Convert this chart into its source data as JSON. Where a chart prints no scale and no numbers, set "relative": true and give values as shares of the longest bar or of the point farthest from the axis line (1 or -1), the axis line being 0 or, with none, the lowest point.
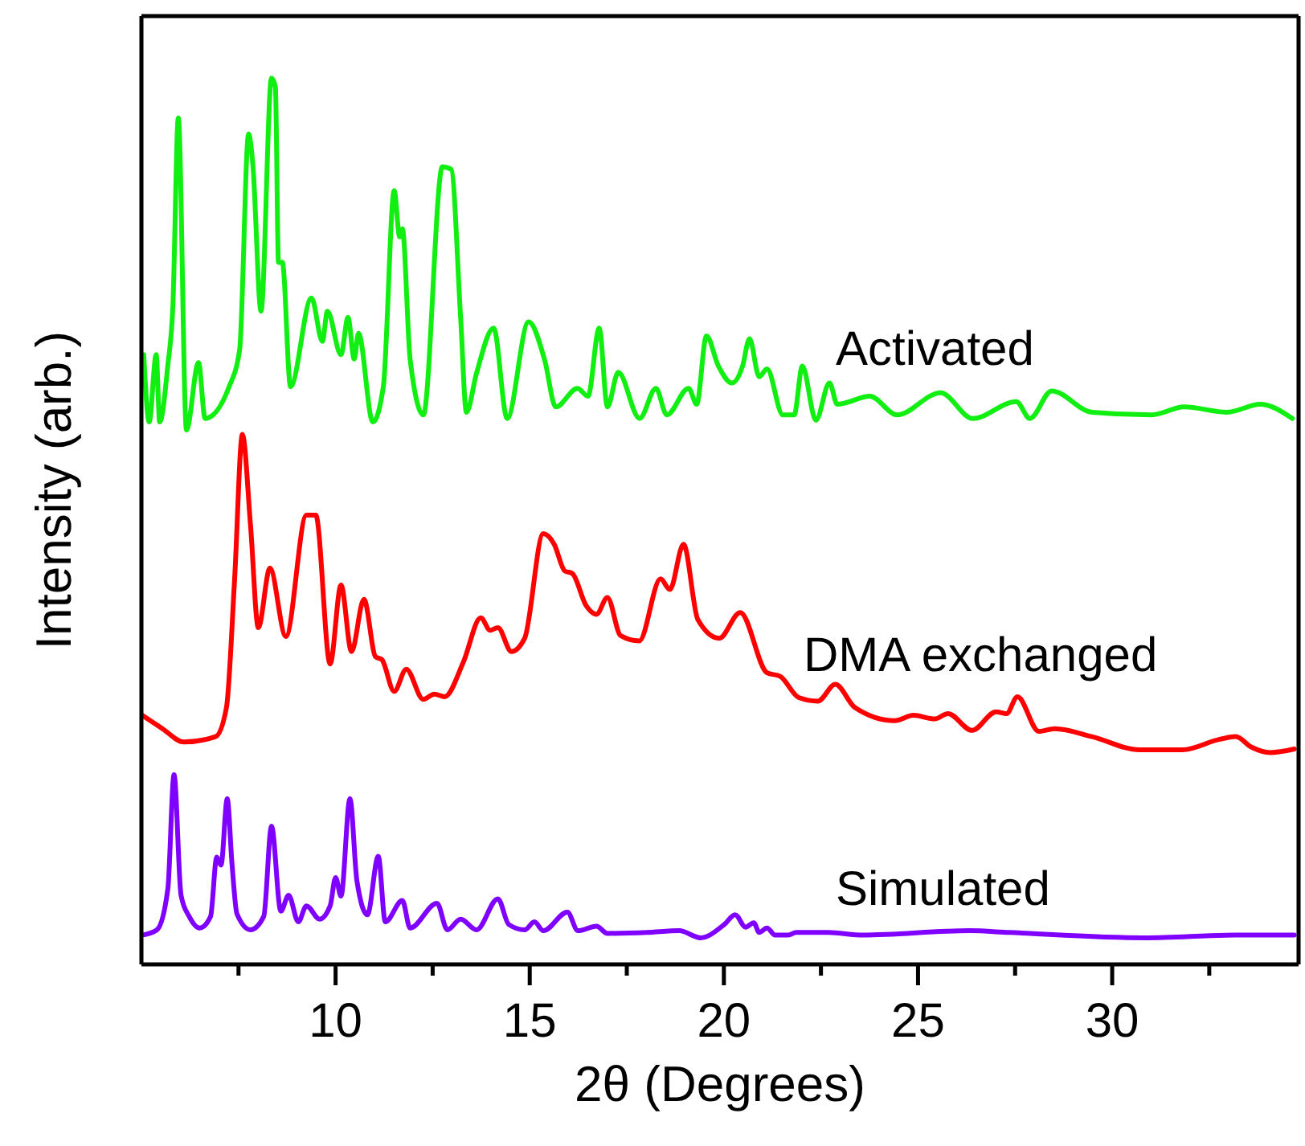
{
  "chart_data": {
    "type": "line",
    "relative": true,
    "xlabel": "2θ (Degrees)",
    "ylabel": "Intensity (arb.)",
    "xlim": [
      5,
      34.8
    ],
    "xticks": [
      {
        "value": 7.5,
        "label": null
      },
      10,
      {
        "value": 12.5,
        "label": null
      },
      15,
      {
        "value": 17.5,
        "label": null
      },
      20,
      {
        "value": 22.5,
        "label": null
      },
      25,
      {
        "value": 27.5,
        "label": null
      },
      30,
      {
        "value": 32.5,
        "label": null
      }
    ],
    "tick_labels": "x",
    "line_style": "solid",
    "series": [
      {
        "name": "Activated",
        "color": "#11ee11",
        "x": [
          5.06,
          5.2,
          5.38,
          5.47,
          5.68,
          5.81,
          5.95,
          6.16,
          6.47,
          6.64,
          7.26,
          7.53,
          7.76,
          7.87,
          8.08,
          8.35,
          8.45,
          8.53,
          8.63,
          8.84,
          9.38,
          9.66,
          9.79,
          10.14,
          10.32,
          10.48,
          10.59,
          10.96,
          11.23,
          11.51,
          11.65,
          11.72,
          11.92,
          12.26,
          12.75,
          12.98,
          13.22,
          13.37,
          13.63,
          14.07,
          14.42,
          14.97,
          15.39,
          15.67,
          16.23,
          16.5,
          16.79,
          17.0,
          17.28,
          17.83,
          18.25,
          18.53,
          19.09,
          19.3,
          19.55,
          19.86,
          20.21,
          20.48,
          20.66,
          20.91,
          21.11,
          21.52,
          21.81,
          22.02,
          22.37,
          22.72,
          22.92,
          23.76,
          24.46,
          25.58,
          26.41,
          27.53,
          27.88,
          28.44,
          29.48,
          31.02,
          31.85,
          32.96,
          33.81,
          34.64
        ],
        "values": [
          0.688,
          0.612,
          0.688,
          0.612,
          0.676,
          0.743,
          0.955,
          0.603,
          0.679,
          0.616,
          0.652,
          0.694,
          0.937,
          0.902,
          0.737,
          1.0,
          0.99,
          0.792,
          0.792,
          0.652,
          0.752,
          0.703,
          0.737,
          0.688,
          0.73,
          0.683,
          0.712,
          0.612,
          0.652,
          0.873,
          0.821,
          0.83,
          0.683,
          0.62,
          0.9,
          0.897,
          0.73,
          0.623,
          0.667,
          0.718,
          0.616,
          0.725,
          0.681,
          0.629,
          0.65,
          0.641,
          0.718,
          0.629,
          0.668,
          0.616,
          0.65,
          0.62,
          0.65,
          0.632,
          0.709,
          0.675,
          0.656,
          0.675,
          0.706,
          0.663,
          0.672,
          0.62,
          0.62,
          0.675,
          0.614,
          0.656,
          0.632,
          0.641,
          0.62,
          0.645,
          0.616,
          0.635,
          0.616,
          0.647,
          0.623,
          0.62,
          0.629,
          0.623,
          0.632,
          0.616
        ]
      },
      {
        "name": "DMA exchanged",
        "color": "#ff0000",
        "x": [
          5.02,
          5.54,
          6.09,
          6.91,
          7.19,
          7.4,
          7.6,
          7.81,
          8.01,
          8.31,
          8.72,
          9.25,
          9.49,
          9.86,
          10.14,
          10.41,
          10.73,
          11.03,
          11.19,
          11.51,
          11.82,
          12.26,
          12.54,
          12.81,
          13.29,
          13.74,
          13.98,
          14.18,
          14.53,
          14.87,
          15.35,
          15.63,
          15.9,
          16.1,
          16.45,
          16.72,
          17.0,
          17.34,
          17.82,
          18.37,
          18.61,
          18.96,
          19.33,
          19.88,
          20.42,
          21.11,
          21.45,
          21.93,
          22.42,
          22.87,
          23.37,
          24.4,
          24.88,
          25.43,
          25.77,
          26.39,
          27.01,
          27.28,
          27.56,
          28.11,
          28.52,
          29.48,
          30.71,
          31.81,
          32.77,
          33.18,
          33.59,
          34.07,
          34.69
        ],
        "values": [
          0.281,
          0.266,
          0.251,
          0.257,
          0.29,
          0.435,
          0.598,
          0.495,
          0.38,
          0.447,
          0.37,
          0.507,
          0.507,
          0.339,
          0.428,
          0.353,
          0.412,
          0.347,
          0.344,
          0.308,
          0.333,
          0.299,
          0.305,
          0.302,
          0.341,
          0.391,
          0.377,
          0.38,
          0.353,
          0.368,
          0.486,
          0.474,
          0.444,
          0.441,
          0.405,
          0.395,
          0.414,
          0.371,
          0.365,
          0.435,
          0.423,
          0.474,
          0.389,
          0.368,
          0.397,
          0.329,
          0.325,
          0.301,
          0.297,
          0.316,
          0.29,
          0.275,
          0.281,
          0.277,
          0.283,
          0.264,
          0.285,
          0.283,
          0.302,
          0.263,
          0.266,
          0.257,
          0.242,
          0.242,
          0.254,
          0.257,
          0.245,
          0.239,
          0.243
        ]
      },
      {
        "name": "Simulated",
        "color": "#8000ff",
        "x": [
          5.02,
          5.4,
          5.68,
          5.84,
          6.02,
          6.23,
          6.5,
          6.78,
          6.94,
          7.05,
          7.21,
          7.33,
          7.46,
          7.81,
          8.15,
          8.35,
          8.59,
          8.79,
          9.04,
          9.25,
          9.59,
          9.86,
          10.0,
          10.14,
          10.37,
          10.55,
          10.82,
          11.1,
          11.28,
          11.72,
          11.92,
          12.61,
          12.88,
          13.22,
          13.63,
          14.18,
          14.46,
          14.87,
          15.12,
          15.35,
          15.97,
          16.24,
          16.72,
          17.0,
          18.02,
          18.85,
          19.4,
          20.01,
          20.29,
          20.56,
          20.77,
          20.91,
          21.11,
          21.32,
          21.66,
          21.86,
          22.69,
          23.58,
          26.33,
          27.35,
          30.85,
          33.18,
          34.69
        ],
        "values": [
          0.033,
          0.039,
          0.085,
          0.214,
          0.078,
          0.054,
          0.041,
          0.054,
          0.121,
          0.112,
          0.187,
          0.115,
          0.057,
          0.039,
          0.054,
          0.156,
          0.06,
          0.078,
          0.048,
          0.066,
          0.051,
          0.066,
          0.098,
          0.077,
          0.187,
          0.094,
          0.056,
          0.122,
          0.048,
          0.072,
          0.041,
          0.069,
          0.039,
          0.051,
          0.039,
          0.074,
          0.045,
          0.039,
          0.048,
          0.038,
          0.059,
          0.038,
          0.043,
          0.035,
          0.036,
          0.038,
          0.03,
          0.045,
          0.056,
          0.042,
          0.047,
          0.036,
          0.041,
          0.033,
          0.033,
          0.036,
          0.036,
          0.033,
          0.038,
          0.036,
          0.03,
          0.033,
          0.033
        ]
      }
    ]
  }
}
